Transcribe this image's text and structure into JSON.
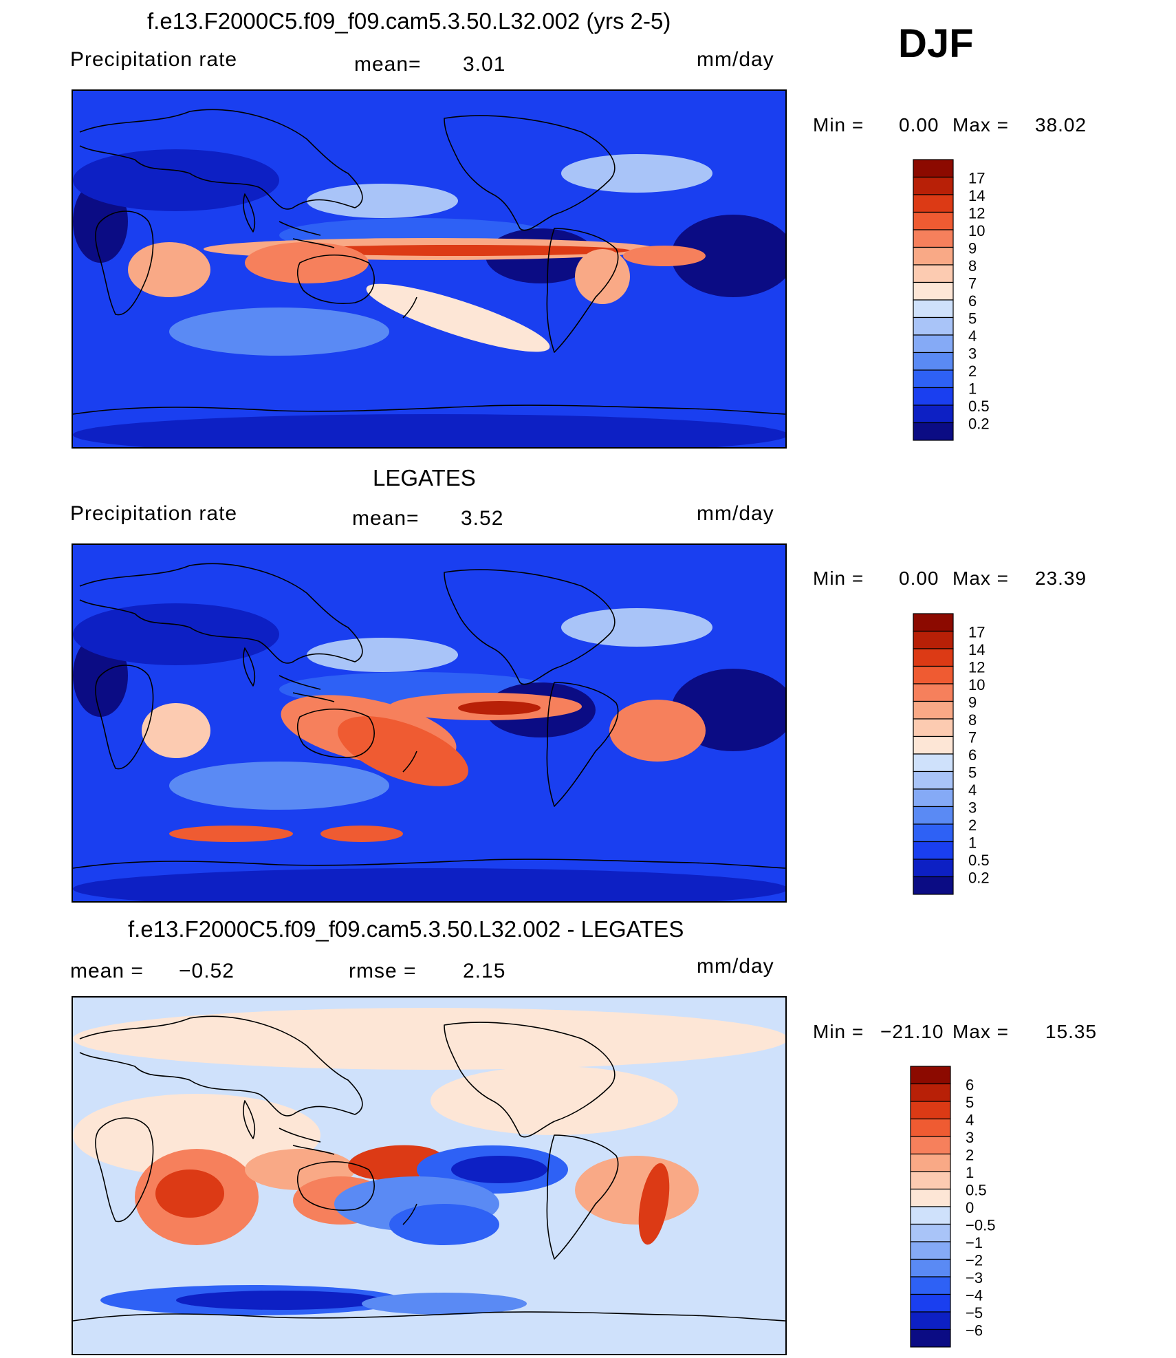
{
  "season": "DJF",
  "colors": {
    "positive_scale": [
      "#0b0c84",
      "#0d20c4",
      "#1a3ff0",
      "#2e61f5",
      "#5a8af4",
      "#85aaf6",
      "#a9c4f8",
      "#cfe1fb",
      "#fde6d6",
      "#fccbb1",
      "#f9a986",
      "#f6805c",
      "#ef5b32",
      "#dc3a15",
      "#b82007",
      "#8c0a00"
    ],
    "diff_scale": [
      "#0b0c84",
      "#0d20c4",
      "#1a3ff0",
      "#2e61f5",
      "#5a8af4",
      "#85aaf6",
      "#a9c4f8",
      "#cfe1fb",
      "#fde6d6",
      "#fccbb1",
      "#f9a986",
      "#f6805c",
      "#ef5b32",
      "#dc3a15",
      "#b82007",
      "#8c0a00"
    ]
  },
  "panels": [
    {
      "title": "f.e13.F2000C5.f09_f09.cam5.3.50.L32.002 (yrs 2-5)",
      "left_label": "Precipitation  rate",
      "mid_label": "mean=",
      "mid_value": "3.01",
      "units": "mm/day",
      "min_label": "Min  =",
      "min_value": "0.00",
      "max_label": "Max  =",
      "max_value": "38.02"
    },
    {
      "title": "LEGATES",
      "left_label": "Precipitation  rate",
      "mid_label": "mean=",
      "mid_value": "3.52",
      "units": "mm/day",
      "min_label": "Min  =",
      "min_value": "0.00",
      "max_label": "Max  =",
      "max_value": "23.39"
    },
    {
      "title": "f.e13.F2000C5.f09_f09.cam5.3.50.L32.002 - LEGATES",
      "left_label": "mean  =",
      "left_value": "−0.52",
      "mid_label": "rmse  =",
      "mid_value": "2.15",
      "units": "mm/day",
      "min_label": "Min  =",
      "min_value": "−21.10",
      "max_label": "Max  =",
      "max_value": "15.35"
    }
  ],
  "chart_data": [
    {
      "type": "heatmap",
      "title": "f.e13.F2000C5.f09_f09.cam5.3.50.L32.002 (yrs 2-5)",
      "variable": "Precipitation rate",
      "units": "mm/day",
      "season": "DJF",
      "mean": 3.01,
      "min": 0.0,
      "max": 38.02,
      "colorbar_levels": [
        "17",
        "14",
        "12",
        "10",
        "9",
        "8",
        "7",
        "6",
        "5",
        "4",
        "3",
        "2",
        "1",
        "0.5",
        "0.2"
      ],
      "projection": "global lat-lon, Pacific-centered"
    },
    {
      "type": "heatmap",
      "title": "LEGATES",
      "variable": "Precipitation rate",
      "units": "mm/day",
      "season": "DJF",
      "mean": 3.52,
      "min": 0.0,
      "max": 23.39,
      "colorbar_levels": [
        "17",
        "14",
        "12",
        "10",
        "9",
        "8",
        "7",
        "6",
        "5",
        "4",
        "3",
        "2",
        "1",
        "0.5",
        "0.2"
      ],
      "projection": "global lat-lon, Pacific-centered"
    },
    {
      "type": "heatmap",
      "title": "f.e13.F2000C5.f09_f09.cam5.3.50.L32.002 - LEGATES",
      "units": "mm/day",
      "season": "DJF",
      "mean": -0.52,
      "rmse": 2.15,
      "min": -21.1,
      "max": 15.35,
      "colorbar_levels": [
        "6",
        "5",
        "4",
        "3",
        "2",
        "1",
        "0.5",
        "0",
        "−0.5",
        "−1",
        "−2",
        "−3",
        "−4",
        "−5",
        "−6"
      ],
      "projection": "global lat-lon, Pacific-centered"
    }
  ]
}
